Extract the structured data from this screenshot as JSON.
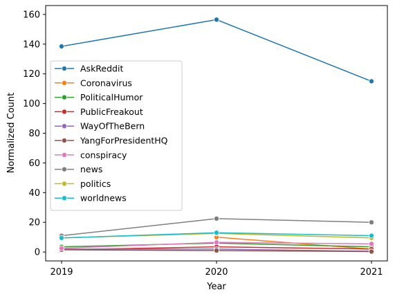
{
  "chart_data": {
    "type": "line",
    "xlabel": "Year",
    "ylabel": "Normalized Count",
    "categories": [
      "2019",
      "2020",
      "2021"
    ],
    "ylim": [
      -6,
      166
    ],
    "yticks": [
      0,
      20,
      40,
      60,
      80,
      100,
      120,
      140,
      160
    ],
    "grid": false,
    "legend_position": "center-left",
    "marker": "circle",
    "series": [
      {
        "name": "AskReddit",
        "color": "#1f77b4",
        "values": [
          138.5,
          156.5,
          115
        ]
      },
      {
        "name": "Coronavirus",
        "color": "#ff7f0e",
        "values": [
          null,
          10,
          2
        ]
      },
      {
        "name": "PoliticalHumor",
        "color": "#2ca02c",
        "values": [
          3.5,
          6,
          3.5
        ]
      },
      {
        "name": "PublicFreakout",
        "color": "#d62728",
        "values": [
          1.5,
          3.5,
          2
        ]
      },
      {
        "name": "WayOfTheBern",
        "color": "#9467bd",
        "values": [
          2,
          2,
          0.5
        ]
      },
      {
        "name": "YangForPresidentHQ",
        "color": "#8c564b",
        "values": [
          1.5,
          1,
          0.3
        ]
      },
      {
        "name": "conspiracy",
        "color": "#e377c2",
        "values": [
          2.5,
          6.5,
          5.5
        ]
      },
      {
        "name": "news",
        "color": "#7f7f7f",
        "values": [
          11,
          22.5,
          20
        ]
      },
      {
        "name": "politics",
        "color": "#bcbd22",
        "values": [
          9.5,
          12.5,
          9.5
        ]
      },
      {
        "name": "worldnews",
        "color": "#17becf",
        "values": [
          9.5,
          13,
          11
        ]
      }
    ]
  }
}
